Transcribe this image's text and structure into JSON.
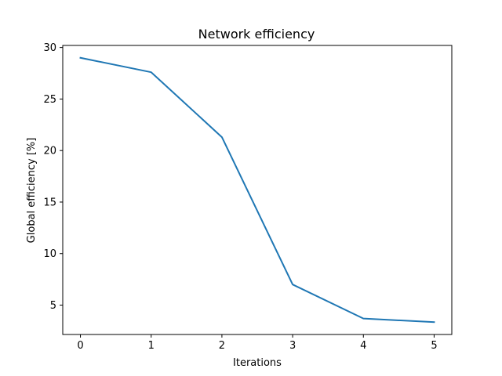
{
  "chart_data": {
    "type": "line",
    "title": "Network efficiency",
    "xlabel": "Iterations",
    "ylabel": "Global efficiency [%]",
    "x": [
      0,
      1,
      2,
      3,
      4,
      5
    ],
    "series": [
      {
        "values": [
          29.0,
          27.6,
          21.3,
          7.0,
          3.7,
          3.35
        ],
        "color": "#1f77b4"
      }
    ],
    "xticks": [
      0,
      1,
      2,
      3,
      4,
      5
    ],
    "xtick_labels": [
      "0",
      "1",
      "2",
      "3",
      "4",
      "5"
    ],
    "yticks": [
      5,
      10,
      15,
      20,
      25,
      30
    ],
    "ytick_labels": [
      "5",
      "10",
      "15",
      "20",
      "25",
      "30"
    ],
    "xlim": [
      -0.25,
      5.25
    ],
    "ylim": [
      2.15,
      30.2
    ],
    "grid": false,
    "legend": "none"
  }
}
